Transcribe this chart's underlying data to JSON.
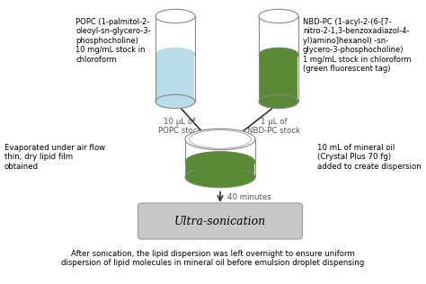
{
  "bg_color": "#ffffff",
  "popc_label": "POPC (1-palmitol-2-\noleoyl-sn-glycero-3-\nphosphocholine)\n10 mg/mL stock in\nchloroform",
  "nbd_label": "NBD-PC (1-acyl-2-(6-[7-\nnitro-2-1,3-benzoxadiazol-4-\nyl)amino]hexanol) -sn-\nglycero-3-phosphocholine)\n1 mg/mL stock in chloroform\n(green fluorescent tag)",
  "arrow1_label": "10 μL of\nPOPC stock",
  "arrow2_label": "1 μL of\nNBD-PC stock",
  "left_note": "Evaporated under air flow\nthin, dry lipid film\nobtained",
  "right_note": "10 mL of mineral oil\n(Crystal Plus 70 fg)\nadded to create dispersion",
  "time_label": "40 minutes",
  "sonication_label": "Ultra-sonication",
  "bottom_text": "After sonication, the lipid dispersion was left overnight to ensure uniform\ndispersion of lipid molecules in mineral oil before emulsion droplet dispensing",
  "tube1_liquid_color": "#b8dde8",
  "tube2_liquid_color": "#5a8a35",
  "tube_outline_color": "#888888",
  "dish_liquid_color": "#5a8a35",
  "dish_outline_color": "#888888",
  "sonication_box_color": "#c8c8c8",
  "sonication_box_edge_color": "#999999",
  "arrow_color": "#333333",
  "label_color": "#555555"
}
